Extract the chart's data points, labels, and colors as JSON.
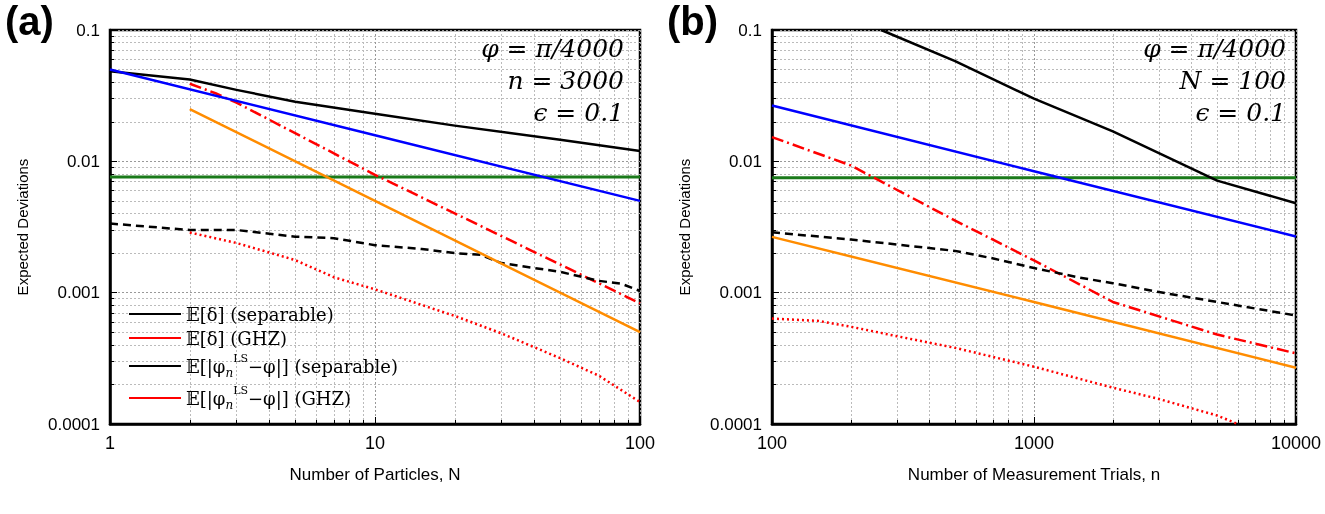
{
  "chart_data": [
    {
      "type": "line",
      "title": "(a)",
      "xlabel": "Number of Particles, N",
      "ylabel": "Expected Deviations",
      "log": "xy",
      "xlim": [
        1,
        100
      ],
      "xticks": [
        1,
        10,
        100
      ],
      "ylim": [
        0.0001,
        0.1
      ],
      "yticks": [
        0.0001,
        0.001,
        0.01,
        0.1
      ],
      "grid": true,
      "legend": "bottom left",
      "marker": "none",
      "annotations": [
        "φ = π/4000",
        "n = 3000",
        "ϵ = 0.1"
      ],
      "ref_lines": [
        {
          "axis": "y",
          "value": 0.0076,
          "color": "#1a7a1a"
        }
      ],
      "series": [
        {
          "name": "𝔼[δ] (separable)",
          "color": "#000000",
          "line_style": "solid",
          "x": [
            1,
            2,
            3,
            5,
            10,
            20,
            50,
            100
          ],
          "values": [
            0.0485,
            0.042,
            0.035,
            0.0284,
            0.023,
            0.0187,
            0.0146,
            0.012
          ]
        },
        {
          "name": "𝔼[δ] (GHZ)",
          "color": "#ff0000",
          "line_style": "dashdot",
          "x": [
            2,
            2.5,
            3,
            10,
            30,
            100
          ],
          "values": [
            0.039,
            0.033,
            0.028,
            0.0079,
            0.0027,
            0.00083
          ]
        },
        {
          "name": "𝔼[|φ$_{n}$$^{LS}$−φ|] (separable)",
          "color": "#000000",
          "line_style": "dashed",
          "x": [
            1,
            2,
            3,
            5,
            7,
            10,
            15,
            20,
            25,
            30,
            50,
            70,
            85,
            100
          ],
          "values": [
            0.00336,
            0.003,
            0.003,
            0.00267,
            0.0026,
            0.0023,
            0.00215,
            0.002,
            0.00194,
            0.00168,
            0.00144,
            0.00123,
            0.00117,
            0.00103
          ]
        },
        {
          "name": "𝔼[|φ$_{n}$$^{LS}$−φ|] (GHZ)",
          "color": "#ff0000",
          "line_style": "dotted",
          "x": [
            2,
            3,
            5,
            7,
            10,
            20,
            30,
            50,
            70,
            100
          ],
          "values": [
            0.00287,
            0.00239,
            0.00177,
            0.00131,
            0.00106,
            0.000665,
            0.00049,
            0.000317,
            0.000233,
            0.000147
          ]
        },
        {
          "color": "#0000ff",
          "line_style": "solid",
          "x": [
            1,
            10,
            100
          ],
          "values": [
            0.05,
            0.0158,
            0.005
          ]
        },
        {
          "color": "#ff8c00",
          "line_style": "solid",
          "x": [
            2,
            10,
            100
          ],
          "values": [
            0.025,
            0.005,
            0.0005
          ]
        }
      ]
    },
    {
      "type": "line",
      "title": "(b)",
      "xlabel": "Number of Measurement Trials, n",
      "ylabel": "Expected Deviations",
      "log": "xy",
      "xlim": [
        100,
        10000
      ],
      "xticks": [
        100,
        1000,
        10000
      ],
      "ylim": [
        0.0001,
        0.1
      ],
      "yticks": [
        0.0001,
        0.001,
        0.01,
        0.1
      ],
      "grid": true,
      "marker": "none",
      "annotations": [
        "φ = π/4000",
        "N = 100",
        "ϵ = 0.1"
      ],
      "ref_lines": [
        {
          "axis": "y",
          "value": 0.0075,
          "color": "#1a7a1a"
        }
      ],
      "series": [
        {
          "color": "#000000",
          "line_style": "solid",
          "x": [
            261,
            500,
            1000,
            2000,
            5000,
            10000
          ],
          "values": [
            0.1,
            0.058,
            0.03,
            0.0169,
            0.00713,
            0.0048
          ]
        },
        {
          "color": "#ff0000",
          "line_style": "dashdot",
          "x": [
            100,
            200,
            500,
            1000,
            2000,
            5000,
            10000
          ],
          "values": [
            0.0153,
            0.0093,
            0.00354,
            0.00176,
            0.00085,
            0.00048,
            0.000345
          ]
        },
        {
          "color": "#000000",
          "line_style": "dashed",
          "x": [
            100,
            200,
            500,
            700,
            1000,
            1500,
            2000,
            3000,
            5000,
            10000
          ],
          "values": [
            0.00288,
            0.00254,
            0.00208,
            0.00182,
            0.00154,
            0.0013,
            0.00118,
            0.00101,
            0.00085,
            0.00067
          ]
        },
        {
          "color": "#ff0000",
          "line_style": "dotted",
          "x": [
            100,
            150,
            200,
            300,
            500,
            1000,
            2000,
            3000,
            5000,
            6000
          ],
          "values": [
            0.000635,
            0.00061,
            0.00055,
            0.000466,
            0.00038,
            0.000273,
            0.000189,
            0.000155,
            0.000116,
            0.0001
          ]
        },
        {
          "color": "#0000ff",
          "line_style": "solid",
          "x": [
            100,
            1000,
            10000
          ],
          "values": [
            0.0266,
            0.0084,
            0.00268
          ]
        },
        {
          "color": "#ff8c00",
          "line_style": "solid",
          "x": [
            100,
            1000,
            10000
          ],
          "values": [
            0.00266,
            0.00085,
            0.000268
          ]
        }
      ]
    }
  ]
}
